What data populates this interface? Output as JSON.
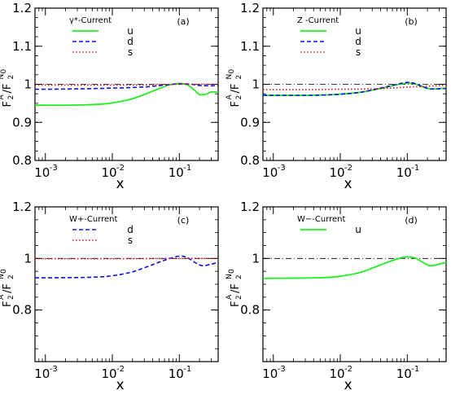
{
  "colors": {
    "u": "#22ee22",
    "d": "#1010dd",
    "s": "#e01010",
    "reference": "#000000"
  },
  "axis_text": {
    "x_title": "x",
    "y_F": "F",
    "y_2": "2",
    "y_A": "A",
    "y_slash": "/F",
    "y_N0": "N",
    "y_0": "0"
  },
  "chart_data": [
    {
      "type": "line",
      "panel": "(a)",
      "legend_title": "γ*-Current",
      "xscale": "log",
      "xlim": [
        0.0007,
        0.38
      ],
      "ylim": [
        0.8,
        1.2
      ],
      "yticks": [
        "0.8",
        "0.9",
        "1",
        "1.1",
        "1.2"
      ],
      "xticks": [
        "10",
        "10",
        "10"
      ],
      "xtick_exponents": [
        "-3",
        "-2",
        "-1"
      ],
      "xlabel": "x",
      "reference_line": 1.0,
      "series": [
        {
          "name": "u",
          "color": "#22ee22",
          "dash": "solid",
          "x": [
            0.0007,
            0.001,
            0.002,
            0.004,
            0.007,
            0.01,
            0.02,
            0.04,
            0.07,
            0.1,
            0.13,
            0.17,
            0.2,
            0.25,
            0.3,
            0.38
          ],
          "y": [
            0.945,
            0.945,
            0.945,
            0.946,
            0.948,
            0.951,
            0.962,
            0.982,
            0.998,
            1.002,
            0.999,
            0.984,
            0.973,
            0.974,
            0.98,
            0.979
          ]
        },
        {
          "name": "d",
          "color": "#1010dd",
          "dash": "dashed",
          "x": [
            0.0007,
            0.001,
            0.003,
            0.01,
            0.03,
            0.06,
            0.1,
            0.15,
            0.2,
            0.3,
            0.38
          ],
          "y": [
            0.987,
            0.987,
            0.988,
            0.99,
            0.993,
            0.998,
            1.001,
            1.0,
            0.997,
            0.996,
            0.997
          ]
        },
        {
          "name": "s",
          "color": "#e01010",
          "dash": "dotted",
          "x": [
            0.0007,
            0.01,
            0.05,
            0.1,
            0.2,
            0.38
          ],
          "y": [
            0.998,
            0.998,
            0.999,
            1.0,
            1.0,
            1.0
          ]
        }
      ]
    },
    {
      "type": "line",
      "panel": "(b)",
      "legend_title": "Z -Current",
      "xscale": "log",
      "xlim": [
        0.0007,
        0.38
      ],
      "ylim": [
        0.8,
        1.2
      ],
      "yticks": [
        "0.8",
        "0.9",
        "1",
        "1.1",
        "1.2"
      ],
      "xticks": [
        "10",
        "10",
        "10"
      ],
      "xtick_exponents": [
        "-3",
        "-2",
        "-1"
      ],
      "xlabel": "x",
      "reference_line": 1.0,
      "series": [
        {
          "name": "u",
          "color": "#22ee22",
          "dash": "solid",
          "x": [
            0.0007,
            0.001,
            0.003,
            0.006,
            0.01,
            0.02,
            0.04,
            0.07,
            0.1,
            0.13,
            0.17,
            0.22,
            0.3,
            0.38
          ],
          "y": [
            0.971,
            0.971,
            0.971,
            0.972,
            0.974,
            0.979,
            0.989,
            0.999,
            1.003,
            1.001,
            0.993,
            0.988,
            0.989,
            0.99
          ]
        },
        {
          "name": "d",
          "color": "#1010dd",
          "dash": "dashed",
          "x": [
            0.0007,
            0.001,
            0.003,
            0.006,
            0.01,
            0.02,
            0.04,
            0.07,
            0.1,
            0.13,
            0.17,
            0.22,
            0.3,
            0.38
          ],
          "y": [
            0.971,
            0.971,
            0.971,
            0.972,
            0.974,
            0.979,
            0.99,
            1.0,
            1.005,
            1.002,
            0.994,
            0.988,
            0.988,
            0.989
          ]
        },
        {
          "name": "s",
          "color": "#e01010",
          "dash": "dotted",
          "x": [
            0.0007,
            0.003,
            0.01,
            0.03,
            0.07,
            0.15,
            0.25,
            0.38
          ],
          "y": [
            0.986,
            0.986,
            0.987,
            0.988,
            0.991,
            0.994,
            0.996,
            0.997
          ]
        }
      ]
    },
    {
      "type": "line",
      "panel": "(c)",
      "legend_title": "W+-Current",
      "xscale": "log",
      "xlim": [
        0.0007,
        0.38
      ],
      "ylim": [
        0.6,
        1.2
      ],
      "yticks": [
        "0.8",
        "1",
        "1.2"
      ],
      "xticks": [
        "10",
        "10",
        "10"
      ],
      "xtick_exponents": [
        "-3",
        "-2",
        "-1"
      ],
      "xlabel": "x",
      "reference_line": 1.0,
      "series": [
        {
          "name": "d",
          "color": "#1010dd",
          "dash": "dashed",
          "x": [
            0.0007,
            0.001,
            0.003,
            0.006,
            0.01,
            0.02,
            0.04,
            0.07,
            0.1,
            0.13,
            0.17,
            0.22,
            0.3,
            0.38
          ],
          "y": [
            0.925,
            0.925,
            0.926,
            0.928,
            0.933,
            0.948,
            0.976,
            0.999,
            1.009,
            1.004,
            0.985,
            0.972,
            0.978,
            0.985
          ]
        },
        {
          "name": "s",
          "color": "#e01010",
          "dash": "dotted",
          "x": [
            0.0007,
            0.01,
            0.1,
            0.38
          ],
          "y": [
            0.999,
            0.999,
            1.0,
            1.0
          ]
        }
      ]
    },
    {
      "type": "line",
      "panel": "(d)",
      "legend_title": "W−-Current",
      "xscale": "log",
      "xlim": [
        0.0007,
        0.38
      ],
      "ylim": [
        0.6,
        1.2
      ],
      "yticks": [
        "0.8",
        "1",
        "1.2"
      ],
      "xticks": [
        "10",
        "10",
        "10"
      ],
      "xtick_exponents": [
        "-3",
        "-2",
        "-1"
      ],
      "xlabel": "x",
      "reference_line": 1.0,
      "series": [
        {
          "name": "u",
          "color": "#22ee22",
          "dash": "solid",
          "x": [
            0.0007,
            0.001,
            0.003,
            0.006,
            0.01,
            0.02,
            0.04,
            0.07,
            0.1,
            0.13,
            0.17,
            0.22,
            0.3,
            0.38
          ],
          "y": [
            0.923,
            0.923,
            0.924,
            0.926,
            0.931,
            0.946,
            0.975,
            0.998,
            1.006,
            1.002,
            0.985,
            0.972,
            0.978,
            0.985
          ]
        }
      ]
    }
  ]
}
